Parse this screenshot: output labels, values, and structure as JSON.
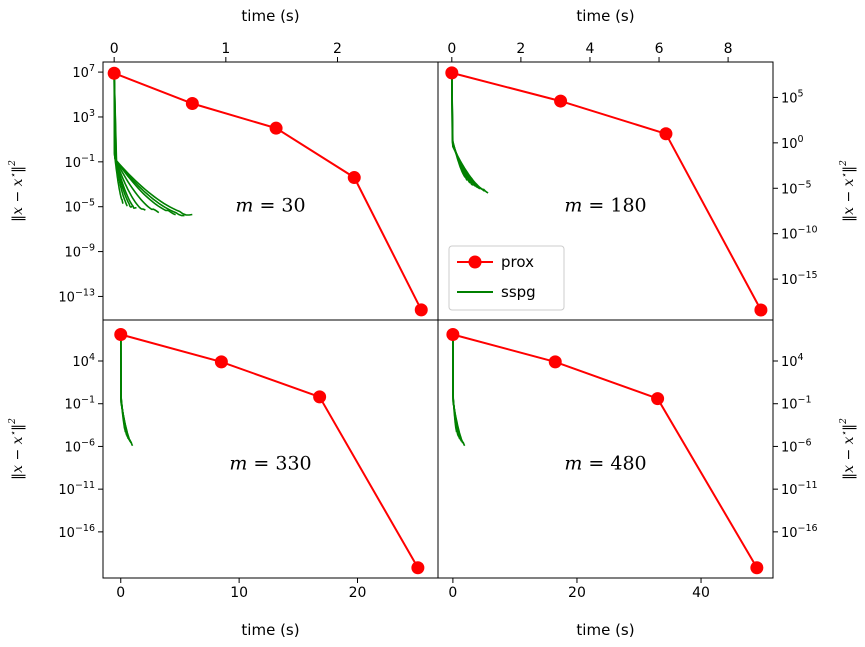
{
  "figure": {
    "legend": {
      "placement": "left-center-right-column",
      "entries": [
        {
          "label": "prox",
          "color": "#ff0000",
          "marker": "circle"
        },
        {
          "label": "sspg",
          "color": "#008000",
          "marker": "none"
        }
      ]
    }
  },
  "chart_data": [
    {
      "type": "line",
      "panel": "top-left",
      "annotation": "m = 30",
      "xlabel": "time (s)",
      "xlabel_position": "top",
      "ylabel": "‖x − x*‖²",
      "ylabel_side": "left",
      "yscale": "log",
      "xlim": [
        -0.1,
        2.9
      ],
      "ylim_exp": [
        -15.1,
        7.9
      ],
      "xticks": [
        0,
        1,
        2
      ],
      "xtick_labels": [
        "0",
        "1",
        "2"
      ],
      "yticks_exp": [
        7,
        3,
        -1,
        -5,
        -9,
        -13
      ],
      "ytick_labels": [
        "10^7",
        "10^3",
        "10^-1",
        "10^-5",
        "10^-9",
        "10^-13"
      ],
      "series": [
        {
          "name": "prox",
          "color": "#ff0000",
          "marker": "circle",
          "x": [
            0,
            0.7,
            1.45,
            2.15,
            2.75
          ],
          "y_exp": [
            6.9,
            4.2,
            2.0,
            -2.4,
            -14.2
          ]
        },
        {
          "name": "sspg",
          "color": "#008000",
          "group": true,
          "curves": [
            {
              "x_end": 0.08,
              "y_end_exp": -4.6
            },
            {
              "x_end": 0.12,
              "y_end_exp": -4.8
            },
            {
              "x_end": 0.16,
              "y_end_exp": -5.0
            },
            {
              "x_end": 0.2,
              "y_end_exp": -5.2
            },
            {
              "x_end": 0.28,
              "y_end_exp": -5.4
            },
            {
              "x_end": 0.4,
              "y_end_exp": -5.5
            },
            {
              "x_end": 0.55,
              "y_end_exp": -5.6
            },
            {
              "x_end": 0.63,
              "y_end_exp": -5.7
            },
            {
              "x_end": 0.7,
              "y_end_exp": -5.7
            }
          ]
        }
      ]
    },
    {
      "type": "line",
      "panel": "top-right",
      "annotation": "m = 180",
      "xlabel": "time (s)",
      "xlabel_position": "top",
      "ylabel": "‖x − x*‖²",
      "ylabel_side": "right",
      "yscale": "log",
      "xlim": [
        -0.4,
        9.3
      ],
      "ylim_exp": [
        -19.5,
        8.9
      ],
      "xticks": [
        0,
        2,
        4,
        6,
        8
      ],
      "xtick_labels": [
        "0",
        "2",
        "4",
        "6",
        "8"
      ],
      "yticks_exp": [
        5,
        0,
        -5,
        -10,
        -15
      ],
      "ytick_labels": [
        "10^5",
        "10^0",
        "10^-5",
        "10^-10",
        "10^-15"
      ],
      "series": [
        {
          "name": "prox",
          "color": "#ff0000",
          "marker": "circle",
          "x": [
            0,
            3.15,
            6.2,
            8.95
          ],
          "y_exp": [
            7.7,
            4.6,
            1.0,
            -18.4
          ]
        },
        {
          "name": "sspg",
          "color": "#008000",
          "group": true,
          "curves": [
            {
              "x_end": 0.45,
              "y_end_exp": -4.0
            },
            {
              "x_end": 0.55,
              "y_end_exp": -4.3
            },
            {
              "x_end": 0.65,
              "y_end_exp": -4.6
            },
            {
              "x_end": 0.75,
              "y_end_exp": -4.8
            },
            {
              "x_end": 0.85,
              "y_end_exp": -5.1
            },
            {
              "x_end": 0.95,
              "y_end_exp": -5.3
            },
            {
              "x_end": 1.05,
              "y_end_exp": -5.4
            }
          ]
        }
      ]
    },
    {
      "type": "line",
      "panel": "bottom-left",
      "annotation": "m = 330",
      "xlabel": "time (s)",
      "xlabel_position": "bottom",
      "ylabel": "‖x − x*‖²",
      "ylabel_side": "left",
      "yscale": "log",
      "xlim": [
        -1.5,
        26.8
      ],
      "ylim_exp": [
        -21.4,
        8.8
      ],
      "xticks": [
        0,
        10,
        20
      ],
      "xtick_labels": [
        "0",
        "10",
        "20"
      ],
      "yticks_exp": [
        4,
        -1,
        -6,
        -11,
        -16
      ],
      "ytick_labels": [
        "10^4",
        "10^-1",
        "10^-6",
        "10^-11",
        "10^-16"
      ],
      "series": [
        {
          "name": "prox",
          "color": "#ff0000",
          "marker": "circle",
          "x": [
            0,
            8.5,
            16.8,
            25.1
          ],
          "y_exp": [
            7.1,
            3.9,
            -0.2,
            -20.2
          ]
        },
        {
          "name": "sspg",
          "color": "#008000",
          "group": true,
          "curves": [
            {
              "x_end": 0.4,
              "y_end_exp": -4.2
            },
            {
              "x_end": 0.5,
              "y_end_exp": -4.5
            },
            {
              "x_end": 0.6,
              "y_end_exp": -4.8
            },
            {
              "x_end": 0.7,
              "y_end_exp": -5.1
            },
            {
              "x_end": 0.8,
              "y_end_exp": -5.4
            },
            {
              "x_end": 0.9,
              "y_end_exp": -5.6
            },
            {
              "x_end": 1.0,
              "y_end_exp": -5.8
            }
          ]
        }
      ]
    },
    {
      "type": "line",
      "panel": "bottom-right",
      "annotation": "m = 480",
      "xlabel": "time (s)",
      "xlabel_position": "bottom",
      "ylabel": "‖x − x*‖²",
      "ylabel_side": "right",
      "yscale": "log",
      "xlim": [
        -2.4,
        51.6
      ],
      "ylim_exp": [
        -21.4,
        8.8
      ],
      "xticks": [
        0,
        20,
        40
      ],
      "xtick_labels": [
        "0",
        "20",
        "40"
      ],
      "yticks_exp": [
        4,
        -1,
        -6,
        -11,
        -16
      ],
      "ytick_labels": [
        "10^4",
        "10^-1",
        "10^-6",
        "10^-11",
        "10^-16"
      ],
      "series": [
        {
          "name": "prox",
          "color": "#ff0000",
          "marker": "circle",
          "x": [
            0,
            16.5,
            33,
            49
          ],
          "y_exp": [
            7.1,
            3.9,
            -0.4,
            -20.2
          ]
        },
        {
          "name": "sspg",
          "color": "#008000",
          "group": true,
          "curves": [
            {
              "x_end": 0.6,
              "y_end_exp": -4.2
            },
            {
              "x_end": 0.8,
              "y_end_exp": -4.5
            },
            {
              "x_end": 1.0,
              "y_end_exp": -4.8
            },
            {
              "x_end": 1.2,
              "y_end_exp": -5.1
            },
            {
              "x_end": 1.4,
              "y_end_exp": -5.4
            },
            {
              "x_end": 1.6,
              "y_end_exp": -5.6
            },
            {
              "x_end": 1.9,
              "y_end_exp": -5.8
            }
          ]
        }
      ]
    }
  ]
}
